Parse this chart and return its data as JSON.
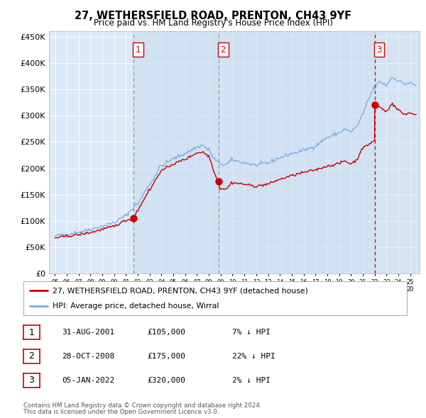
{
  "title": "27, WETHERSFIELD ROAD, PRENTON, CH43 9YF",
  "subtitle": "Price paid vs. HM Land Registry's House Price Index (HPI)",
  "ylabel_ticks": [
    "£0",
    "£50K",
    "£100K",
    "£150K",
    "£200K",
    "£250K",
    "£300K",
    "£350K",
    "£400K",
    "£450K"
  ],
  "ytick_values": [
    0,
    50000,
    100000,
    150000,
    200000,
    250000,
    300000,
    350000,
    400000,
    450000
  ],
  "sale1_date": 2001.66,
  "sale1_price": 105000,
  "sale2_date": 2008.83,
  "sale2_price": 175000,
  "sale3_date": 2022.02,
  "sale3_price": 320000,
  "legend_red": "27, WETHERSFIELD ROAD, PRENTON, CH43 9YF (detached house)",
  "legend_blue": "HPI: Average price, detached house, Wirral",
  "table_rows": [
    [
      "1",
      "31-AUG-2001",
      "£105,000",
      "7% ↓ HPI"
    ],
    [
      "2",
      "28-OCT-2008",
      "£175,000",
      "22% ↓ HPI"
    ],
    [
      "3",
      "05-JAN-2022",
      "£320,000",
      "2% ↓ HPI"
    ]
  ],
  "footnote1": "Contains HM Land Registry data © Crown copyright and database right 2024.",
  "footnote2": "This data is licensed under the Open Government Licence v3.0.",
  "bg_color": "#dce9f8",
  "panel_color": "#c8ddf0",
  "line_red": "#cc0000",
  "line_blue": "#7aaddb",
  "xlim_start": 1994.5,
  "xlim_end": 2025.8,
  "ylim_bottom": 0,
  "ylim_top": 460000
}
